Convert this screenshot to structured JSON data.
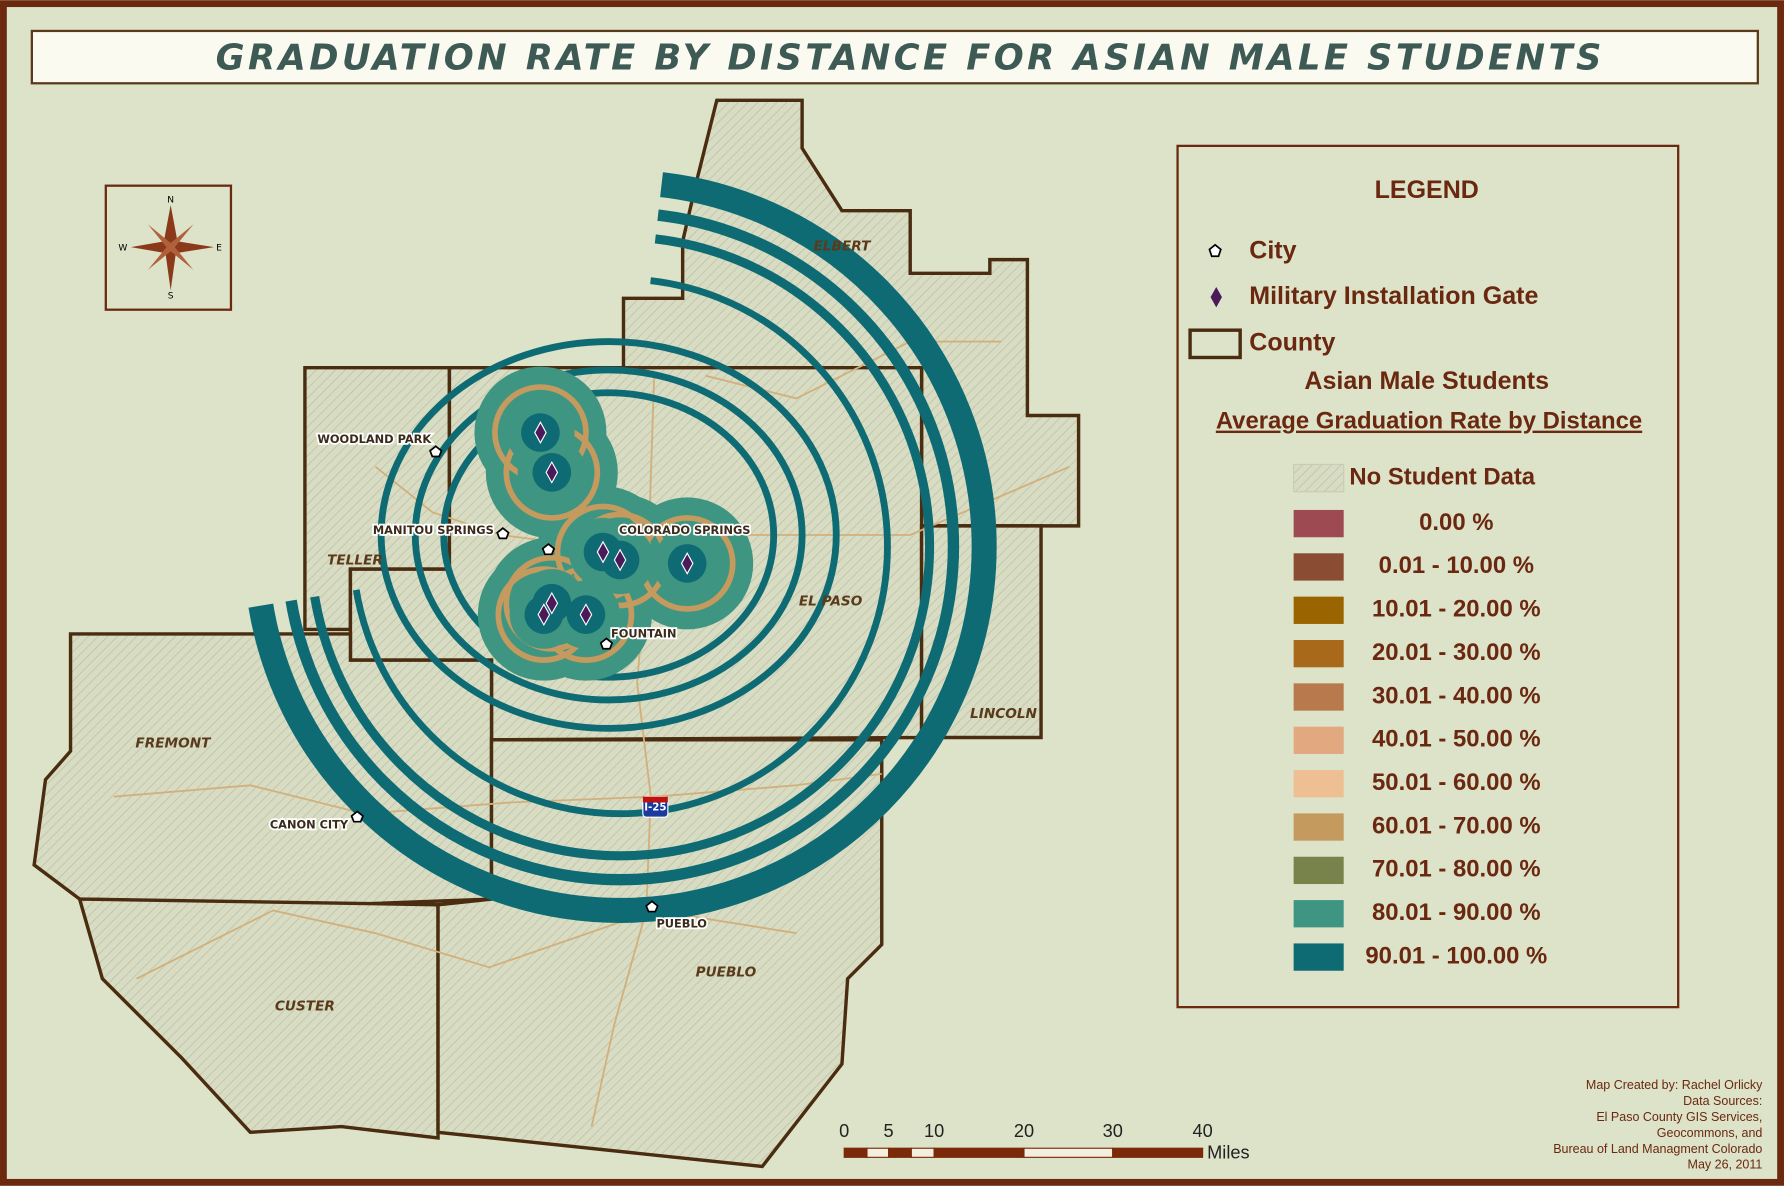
{
  "title": "GRADUATION RATE BY DISTANCE FOR ASIAN MALE STUDENTS",
  "compass": {
    "n": "N",
    "s": "S",
    "e": "E",
    "w": "W"
  },
  "legend": {
    "title": "LEGEND",
    "symbols": [
      "City",
      "Military Installation Gate",
      "County"
    ],
    "subtitle": "Asian Male Students",
    "heading": "Average Graduation Rate by Distance",
    "classes": [
      {
        "label": "No Student Data",
        "color": "hatch"
      },
      {
        "label": "0.00 %",
        "color": "#9e4a52"
      },
      {
        "label": "0.01 - 10.00 %",
        "color": "#8b4c34"
      },
      {
        "label": "10.01 - 20.00 %",
        "color": "#9a6400"
      },
      {
        "label": "20.01 - 30.00 %",
        "color": "#a86a1a"
      },
      {
        "label": "30.01 - 40.00 %",
        "color": "#b87a4c"
      },
      {
        "label": "40.01 - 50.00 %",
        "color": "#e2a880"
      },
      {
        "label": "50.01 - 60.00 %",
        "color": "#efbf94"
      },
      {
        "label": "60.01 - 70.00 %",
        "color": "#c49a5e"
      },
      {
        "label": "70.01 - 80.00 %",
        "color": "#77834a"
      },
      {
        "label": "80.01 - 90.00 %",
        "color": "#3e9682"
      },
      {
        "label": "90.01 - 100.00 %",
        "color": "#0e6b73"
      }
    ]
  },
  "counties": [
    "ELBERT",
    "TELLER",
    "EL PASO",
    "LINCOLN",
    "FREMONT",
    "CUSTER",
    "PUEBLO"
  ],
  "cities": [
    "WOODLAND PARK",
    "MANITOU SPRINGS",
    "COLORADO SPRINGS",
    "FOUNTAIN",
    "CANON CITY",
    "PUEBLO"
  ],
  "highway": "I-25",
  "scale_bar": {
    "ticks": [
      "0",
      "5",
      "10",
      "20",
      "30",
      "40"
    ],
    "unit": "Miles"
  },
  "credits": [
    "Map Created by:  Rachel Orlicky",
    "Data Sources:",
    "El Paso County GIS Services,",
    "Geocommons, and",
    "Bureau of Land Managment Colorado",
    "May 26, 2011"
  ]
}
